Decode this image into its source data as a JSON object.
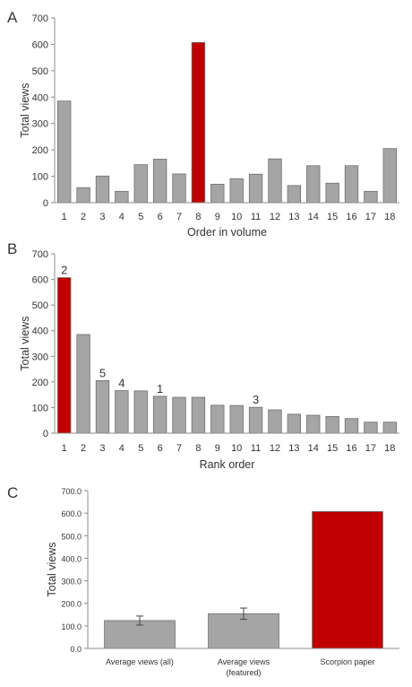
{
  "colors": {
    "gray": "#a5a5a5",
    "red": "#c00000",
    "axis": "#8c8c8c",
    "text": "#333333"
  },
  "chart_data": [
    {
      "panel": "A",
      "type": "bar",
      "xlabel": "Order in volume",
      "ylabel": "Total views",
      "ylim": [
        0,
        700
      ],
      "yticks": [
        "0",
        "100",
        "200",
        "300",
        "400",
        "500",
        "600",
        "700"
      ],
      "categories": [
        "1",
        "2",
        "3",
        "4",
        "5",
        "6",
        "7",
        "8",
        "9",
        "10",
        "11",
        "12",
        "13",
        "14",
        "15",
        "16",
        "17",
        "18"
      ],
      "values": [
        385,
        57,
        101,
        43,
        144,
        165,
        109,
        607,
        70,
        91,
        108,
        166,
        65,
        140,
        74,
        140,
        43,
        205
      ],
      "highlight_index": 7
    },
    {
      "panel": "B",
      "type": "bar",
      "xlabel": "Rank order",
      "ylabel": "Total views",
      "ylim": [
        0,
        700
      ],
      "yticks": [
        "0",
        "100",
        "200",
        "300",
        "400",
        "500",
        "600",
        "700"
      ],
      "categories": [
        "1",
        "2",
        "3",
        "4",
        "5",
        "6",
        "7",
        "8",
        "9",
        "10",
        "11",
        "12",
        "13",
        "14",
        "15",
        "16",
        "17",
        "18"
      ],
      "values": [
        607,
        385,
        205,
        166,
        165,
        144,
        140,
        140,
        109,
        108,
        101,
        91,
        74,
        70,
        65,
        57,
        43,
        43
      ],
      "highlight_index": 0,
      "annotations": [
        {
          "index": 0,
          "text": "2"
        },
        {
          "index": 2,
          "text": "5"
        },
        {
          "index": 3,
          "text": "4"
        },
        {
          "index": 5,
          "text": "1"
        },
        {
          "index": 10,
          "text": "3"
        }
      ]
    },
    {
      "panel": "C",
      "type": "bar",
      "xlabel": "",
      "ylabel": "Total views",
      "ylim": [
        0,
        700
      ],
      "yticks": [
        "0.0",
        "100.0",
        "200.0",
        "300.0",
        "400.0",
        "500.0",
        "600.0",
        "700.0"
      ],
      "categories": [
        [
          "Average views (all)"
        ],
        [
          "Average views",
          "(featured)"
        ],
        [
          "Scorpion paper"
        ]
      ],
      "values": [
        123.6,
        154.0,
        607.0
      ],
      "errors": [
        20,
        25,
        0
      ],
      "highlight_index": 2
    }
  ]
}
